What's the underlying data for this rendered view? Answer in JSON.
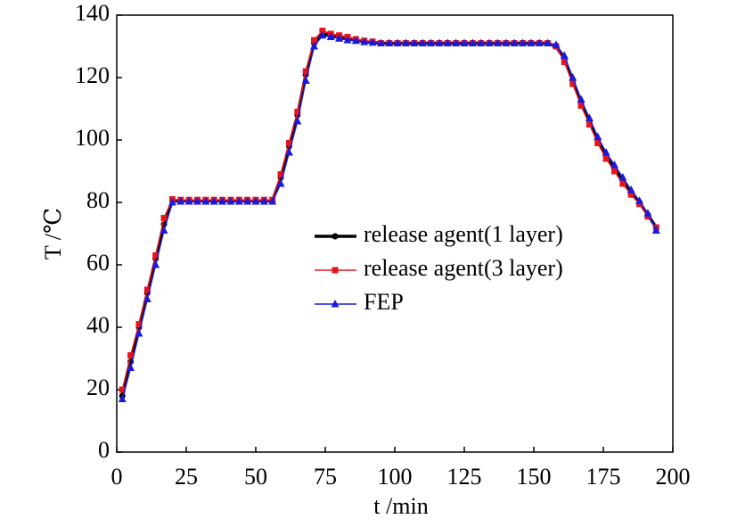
{
  "chart_data": {
    "type": "line",
    "x_label": "t /min",
    "y_label": "T /℃",
    "x": [
      2,
      5,
      8,
      11,
      14,
      17,
      20,
      23,
      26,
      29,
      32,
      35,
      38,
      41,
      44,
      47,
      50,
      53,
      56,
      59,
      62,
      65,
      68,
      71,
      74,
      77,
      80,
      83,
      86,
      89,
      92,
      95,
      98,
      101,
      104,
      107,
      110,
      113,
      116,
      119,
      122,
      125,
      128,
      131,
      134,
      137,
      140,
      143,
      146,
      149,
      152,
      155,
      158,
      161,
      164,
      167,
      170,
      173,
      176,
      179,
      182,
      185,
      188,
      191,
      194
    ],
    "series": [
      {
        "name": "release agent(1 layer)",
        "color": "#000000",
        "marker": "circle",
        "values": [
          18,
          29,
          40,
          51,
          62,
          73,
          80.5,
          80.5,
          80.5,
          80.5,
          80.5,
          80.5,
          80.5,
          80.5,
          80.5,
          80.5,
          80.5,
          80.5,
          80.5,
          88,
          98,
          108,
          121,
          131,
          134,
          133.5,
          133,
          132.5,
          132,
          131.5,
          131.3,
          131,
          131,
          131,
          131,
          131,
          131,
          131,
          131,
          131,
          131,
          131,
          131,
          131,
          131,
          131,
          131,
          131,
          131,
          131,
          131,
          131,
          130,
          126,
          119,
          112,
          106,
          100,
          95,
          91,
          87,
          83,
          80,
          76,
          72
        ]
      },
      {
        "name": "release agent(3 layer)",
        "color": "#e8141c",
        "marker": "square",
        "values": [
          20,
          31,
          41,
          52,
          63,
          75,
          81,
          80.8,
          80.8,
          80.8,
          80.8,
          80.8,
          80.8,
          80.8,
          80.8,
          80.8,
          80.8,
          80.8,
          80.8,
          89,
          99,
          109,
          122,
          132,
          135,
          134,
          133.5,
          133,
          132.3,
          131.8,
          131.5,
          131,
          131,
          131,
          131,
          131,
          131,
          131,
          131,
          131,
          131,
          131,
          131,
          131,
          131,
          131,
          131,
          131,
          131,
          131,
          131,
          131,
          130,
          125,
          118,
          111,
          105,
          99,
          94,
          90,
          86,
          82.5,
          79.5,
          75.5,
          72
        ]
      },
      {
        "name": "FEP",
        "color": "#1a1adc",
        "marker": "triangle",
        "values": [
          17,
          27,
          38,
          49,
          60,
          71,
          80,
          80.3,
          80.3,
          80.3,
          80.3,
          80.3,
          80.3,
          80.3,
          80.3,
          80.3,
          80.3,
          80.3,
          80.3,
          86,
          96,
          106,
          119,
          130,
          133.5,
          133,
          132.5,
          132,
          131.8,
          131.4,
          131.2,
          131,
          131,
          131,
          131,
          131,
          131,
          131,
          131,
          131,
          131,
          131,
          131,
          131,
          131,
          131,
          131,
          131,
          131,
          131,
          131,
          131,
          130.5,
          127,
          120,
          113,
          107,
          101,
          96,
          92,
          88,
          84,
          80.5,
          76.5,
          71
        ]
      }
    ],
    "xlim": [
      0,
      200
    ],
    "xticks": [
      0,
      25,
      50,
      75,
      100,
      125,
      150,
      175,
      200
    ],
    "ylim": [
      0,
      140
    ],
    "yticks": [
      0,
      20,
      40,
      60,
      80,
      100,
      120,
      140
    ]
  }
}
